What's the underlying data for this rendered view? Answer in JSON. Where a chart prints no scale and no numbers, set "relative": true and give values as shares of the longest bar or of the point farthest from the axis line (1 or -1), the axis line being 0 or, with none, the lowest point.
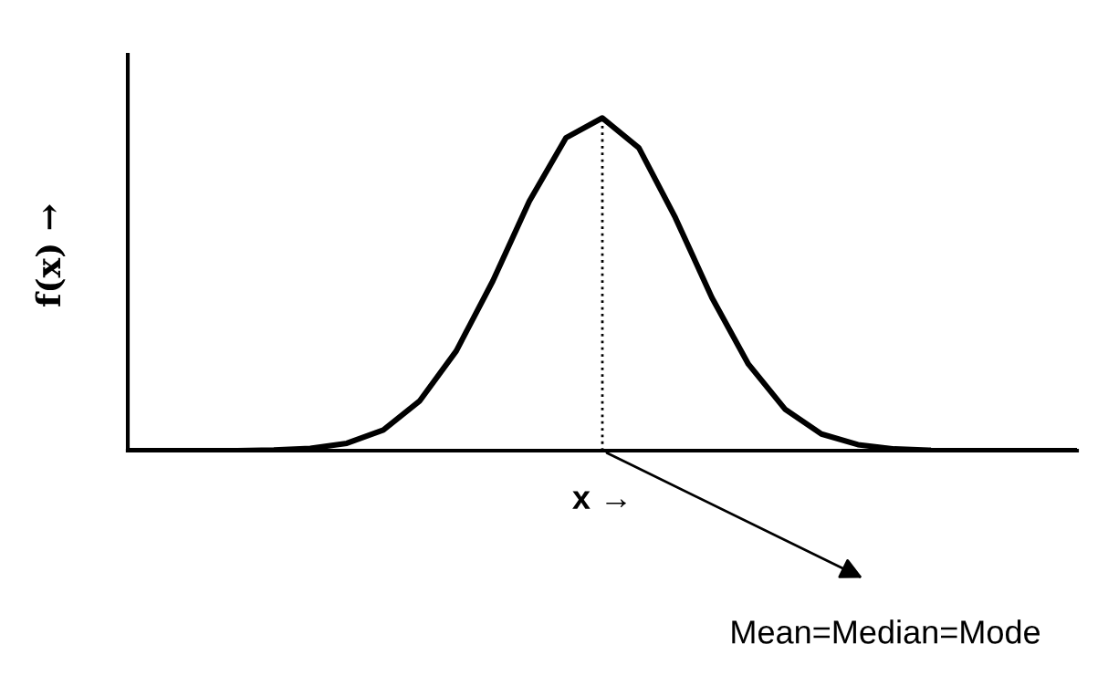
{
  "chart_data": {
    "type": "line",
    "relative": true,
    "xlabel": "x →",
    "ylabel": "f(x) →",
    "categories": [
      null,
      null,
      null,
      null,
      null,
      null,
      null,
      null,
      null,
      null,
      null,
      null,
      null,
      null,
      null,
      null,
      null,
      null,
      null,
      null,
      null,
      null,
      null,
      null,
      null,
      null,
      null
    ],
    "series": [
      {
        "color": "#000000",
        "values": [
          0,
          0,
          0,
          0,
          0.002,
          0.007,
          0.022,
          0.062,
          0.15,
          0.3,
          0.51,
          0.75,
          0.94,
          1,
          0.91,
          0.7,
          0.46,
          0.26,
          0.125,
          0.05,
          0.018,
          0.005,
          0.001,
          0,
          0,
          0,
          0
        ]
      }
    ],
    "annotations": [
      "Mean=Median=Mode"
    ],
    "marker": "none",
    "line_style": "solid",
    "grid": false,
    "legend": false
  }
}
